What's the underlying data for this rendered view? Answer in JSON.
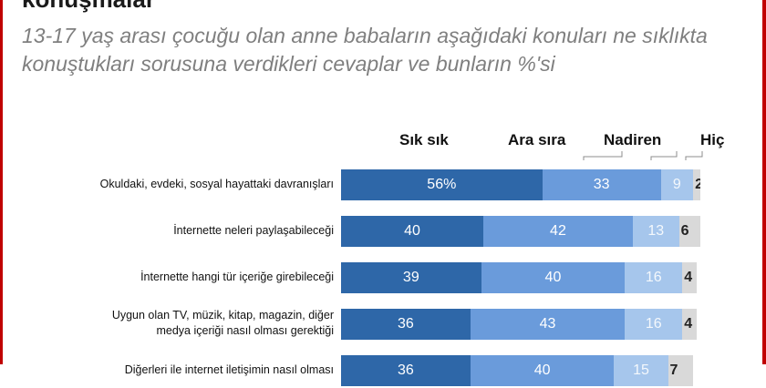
{
  "heading": "konuşmalar",
  "subtitle": "13-17 yaş arası çocuğu olan anne babaların aşağıdaki konuları ne sıklıkta konuştukları sorusuna verdikleri cevaplar ve bunların %'si",
  "colors": {
    "frame": "#c00000",
    "sik_sik": "#2e67a8",
    "ara_sira": "#6a9bdb",
    "nadiren": "#a6c6ec",
    "hic": "#d9d9d9"
  },
  "chart_data": {
    "type": "bar",
    "orientation": "horizontal",
    "stacked": true,
    "xlim": [
      0,
      100
    ],
    "legend_placement": "top",
    "categories": [
      "Okuldaki, evdeki, sosyal hayattaki davranışları",
      "İnternette neleri paylaşabileceği",
      "İnternette hangi tür içeriğe girebileceği",
      "Uygun olan TV, müzik, kitap, magazin, diğer medya içeriği nasıl olması gerektiği",
      "Diğerleri ile internet iletişimin nasıl olması"
    ],
    "category_lines": [
      [
        "Okuldaki, evdeki, sosyal hayattaki davranışları"
      ],
      [
        "İnternette neleri paylaşabileceği"
      ],
      [
        "İnternette hangi tür içeriğe girebileceği"
      ],
      [
        "Uygun olan TV, müzik, kitap, magazin, diğer",
        "medya içeriği nasıl olması gerektiği"
      ],
      [
        "Diğerleri ile internet iletişimin nasıl olması"
      ]
    ],
    "series": [
      {
        "name": "Sık sık",
        "values": [
          56,
          40,
          39,
          36,
          36
        ],
        "labels": [
          "56%",
          "40",
          "39",
          "36",
          "36"
        ]
      },
      {
        "name": "Ara sıra",
        "values": [
          33,
          42,
          40,
          43,
          40
        ],
        "labels": [
          "33",
          "42",
          "40",
          "43",
          "40"
        ]
      },
      {
        "name": "Nadiren",
        "values": [
          9,
          13,
          16,
          16,
          15
        ],
        "labels": [
          "9",
          "13",
          "16",
          "16",
          "15"
        ]
      },
      {
        "name": "Hiç",
        "values": [
          2,
          6,
          4,
          4,
          7
        ],
        "labels": [
          "2",
          "6",
          "4",
          "4",
          "7"
        ]
      }
    ]
  }
}
